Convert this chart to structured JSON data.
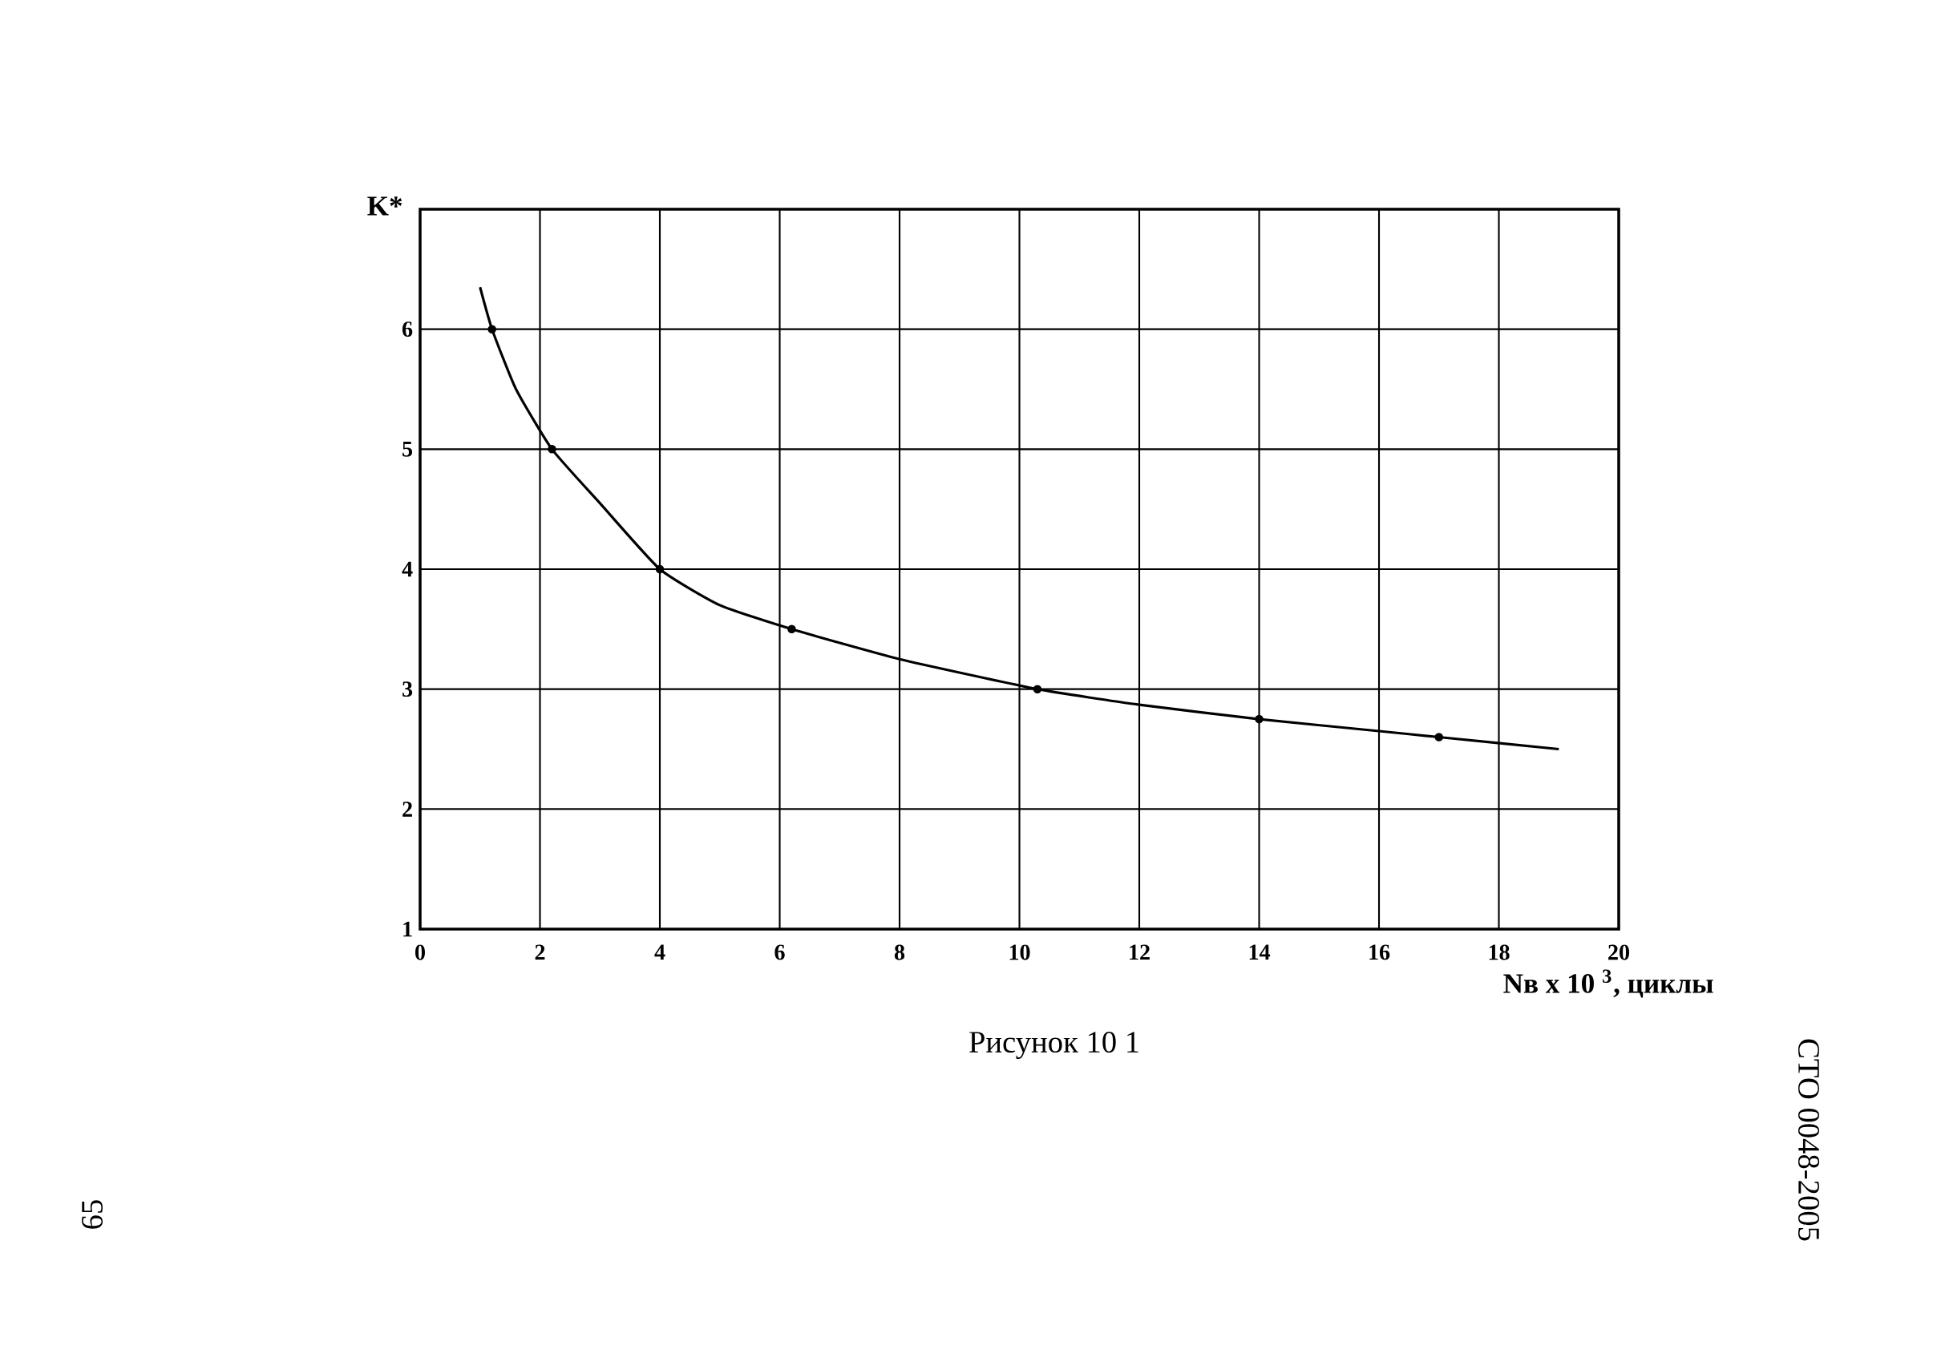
{
  "chart_data": {
    "type": "line",
    "ylabel": "K*",
    "xlabel": "Nв x 10 $^{3}$, циклы",
    "annotations": [
      "Рисунок 10 1",
      "СТО 0048-2005",
      "65"
    ],
    "xlim": [
      0,
      20
    ],
    "ylim": [
      1,
      7
    ],
    "xticks": [
      0,
      2,
      4,
      6,
      8,
      10,
      12,
      14,
      16,
      18,
      20
    ],
    "yticks": [
      1,
      2,
      3,
      4,
      5,
      6
    ],
    "grid": true,
    "series": [
      {
        "color": "#000000",
        "x": [
          1.0,
          1.2,
          1.6,
          2.2,
          3.0,
          4.0,
          5.0,
          6.2,
          8.0,
          10.3,
          12.0,
          14.0,
          16.0,
          17.0,
          19.0
        ],
        "values": [
          6.35,
          6.0,
          5.5,
          5.0,
          4.55,
          4.0,
          3.7,
          3.5,
          3.25,
          3.0,
          2.87,
          2.75,
          2.65,
          2.6,
          2.5
        ]
      },
      {
        "type": "scatter",
        "color": "#000000",
        "marker": "circle",
        "x": [
          1.2,
          2.2,
          4.0,
          6.2,
          10.3,
          14.0,
          17.0
        ],
        "values": [
          6.0,
          5.0,
          4.0,
          3.5,
          3.0,
          2.75,
          2.6
        ]
      }
    ]
  }
}
